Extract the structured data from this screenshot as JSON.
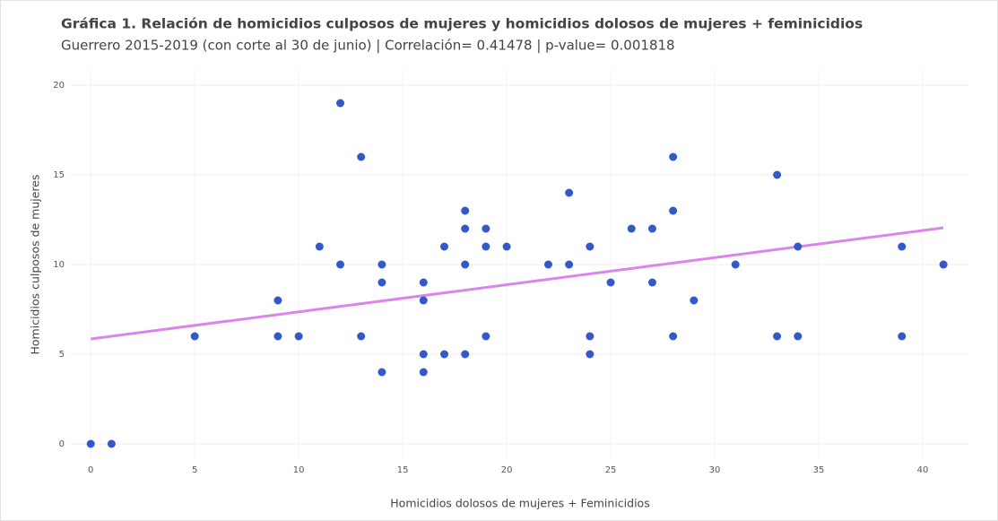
{
  "chart_data": {
    "type": "scatter",
    "title": "Gráfica 1. Relación de homicidios culposos de mujeres y homicidios dolosos de mujeres + feminicidios",
    "subtitle": "Guerrero 2015-2019 (con corte al 30 de junio) | Correlación= 0.41478 | p-value= 0.001818",
    "xlabel": "Homicidios dolosos de mujeres + Feminicidios",
    "ylabel": "Homicidios culposos de mujeres",
    "x": [
      0,
      1,
      5,
      9,
      9,
      10,
      11,
      12,
      12,
      13,
      13,
      14,
      14,
      14,
      16,
      16,
      16,
      16,
      17,
      17,
      18,
      18,
      18,
      18,
      19,
      19,
      19,
      20,
      22,
      23,
      23,
      24,
      24,
      24,
      25,
      26,
      27,
      27,
      28,
      28,
      28,
      29,
      31,
      33,
      33,
      34,
      34,
      39,
      39,
      41
    ],
    "y": [
      0,
      0,
      6,
      8,
      6,
      6,
      11,
      19,
      10,
      16,
      6,
      10,
      9,
      4,
      9,
      8,
      5,
      4,
      11,
      5,
      13,
      12,
      10,
      5,
      12,
      11,
      6,
      11,
      10,
      14,
      10,
      11,
      6,
      5,
      9,
      12,
      12,
      9,
      16,
      13,
      6,
      8,
      10,
      15,
      6,
      11,
      6,
      11,
      6,
      10
    ],
    "color": "#3358c8",
    "trendline": {
      "x": [
        0,
        41
      ],
      "y": [
        5.85,
        12.05
      ],
      "color": "#d985ea"
    },
    "xlim": [
      -1,
      42.2
    ],
    "ylim": [
      -0.9,
      20.9
    ],
    "xticks": [
      0,
      5,
      10,
      15,
      20,
      25,
      30,
      35,
      40
    ],
    "yticks": [
      0,
      5,
      10,
      15,
      20
    ],
    "grid": true
  }
}
